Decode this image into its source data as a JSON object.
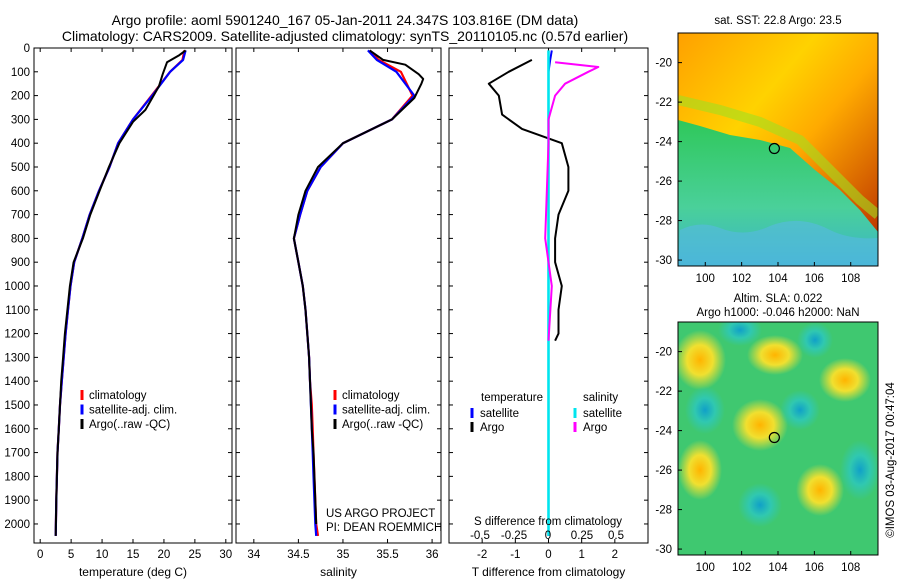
{
  "header": {
    "title_line1": "Argo profile: aoml 5901240_167 05-Jan-2011 24.347S 103.816E (DM data)",
    "title_line2": "Climatology: CARS2009. Satellite-adjusted climatology: synTS_20110105.nc (0.57d earlier)"
  },
  "colors": {
    "climatology": "#ff0000",
    "satellite": "#0000ff",
    "argo": "#000000",
    "sal_sat": "#00e5ee",
    "sal_argo": "#ff00ff"
  },
  "chart_data": [
    {
      "type": "line",
      "xlabel": "temperature (deg C)",
      "ylim": [
        2080,
        0
      ],
      "xlim": [
        -1,
        31
      ],
      "xticks": [
        0,
        5,
        10,
        15,
        20,
        25,
        30
      ],
      "yticks": [
        0,
        100,
        200,
        300,
        400,
        500,
        600,
        700,
        800,
        900,
        1000,
        1100,
        1200,
        1300,
        1400,
        1500,
        1600,
        1700,
        1800,
        1900,
        2000
      ],
      "legend": [
        "climatology",
        "satellite-adj. clim.",
        "Argo(..raw -QC)"
      ],
      "series": [
        {
          "name": "climatology",
          "x": [
            23.3,
            23.0,
            21.0,
            18.0,
            15.0,
            12.6,
            11.2,
            9.5,
            8.0,
            6.8,
            5.5,
            4.9,
            4.5,
            4.1,
            3.8,
            3.5,
            3.2,
            3.0,
            2.8,
            2.7,
            2.6,
            2.5
          ],
          "y": [
            10,
            50,
            100,
            200,
            300,
            400,
            500,
            600,
            700,
            800,
            900,
            1000,
            1100,
            1200,
            1300,
            1400,
            1500,
            1600,
            1700,
            1800,
            1900,
            2050
          ]
        },
        {
          "name": "satellite-adj. clim.",
          "x": [
            23.5,
            23.1,
            21.0,
            18.1,
            15.0,
            12.6,
            11.2,
            9.5,
            8.0,
            6.8,
            5.5,
            4.9,
            4.5,
            4.1,
            3.8,
            3.5,
            3.2,
            3.0,
            2.8,
            2.7,
            2.6,
            2.5
          ],
          "y": [
            10,
            50,
            100,
            200,
            300,
            400,
            500,
            600,
            700,
            800,
            900,
            1000,
            1100,
            1200,
            1300,
            1400,
            1500,
            1600,
            1700,
            1800,
            1900,
            2050
          ]
        },
        {
          "name": "Argo(..raw -QC)",
          "x": [
            23.5,
            22.5,
            20.5,
            19.8,
            19.2,
            17.0,
            15.0,
            12.8,
            11.1,
            9.6,
            8.1,
            6.9,
            5.4,
            4.8,
            4.4,
            4.0,
            3.7,
            3.4,
            3.2,
            3.0,
            2.8,
            2.7,
            2.6,
            2.5
          ],
          "y": [
            10,
            30,
            60,
            110,
            160,
            260,
            310,
            400,
            500,
            600,
            700,
            800,
            900,
            1000,
            1100,
            1200,
            1300,
            1400,
            1500,
            1600,
            1700,
            1800,
            1900,
            2050
          ]
        }
      ]
    },
    {
      "type": "line",
      "xlabel": "salinity",
      "ylim": [
        2080,
        0
      ],
      "xlim": [
        33.8,
        36.1
      ],
      "xticks": [
        34,
        34.5,
        35,
        35.5,
        36
      ],
      "xticklabels": [
        "34",
        "34.5",
        "35",
        "35.5",
        "36"
      ],
      "legend": [
        "climatology",
        "satellite-adj. clim.",
        "Argo(..raw -QC)"
      ],
      "annotation": [
        "US ARGO PROJECT",
        "PI: DEAN ROEMMICH"
      ],
      "series": [
        {
          "name": "climatology",
          "x": [
            35.3,
            35.4,
            35.65,
            35.78,
            35.55,
            35.0,
            34.75,
            34.6,
            34.52,
            34.45,
            34.5,
            34.55,
            34.58,
            34.6,
            34.62,
            34.63,
            34.65,
            34.66,
            34.67,
            34.68,
            34.69,
            34.7,
            34.72
          ],
          "y": [
            10,
            50,
            100,
            200,
            300,
            400,
            500,
            600,
            700,
            800,
            900,
            1000,
            1100,
            1200,
            1300,
            1400,
            1500,
            1600,
            1700,
            1800,
            1900,
            2000,
            2050
          ]
        },
        {
          "name": "satellite-adj. clim.",
          "x": [
            35.28,
            35.38,
            35.6,
            35.8,
            35.55,
            35.0,
            34.75,
            34.6,
            34.52,
            34.45,
            34.5,
            34.55,
            34.58,
            34.6,
            34.62,
            34.63,
            34.64,
            34.65,
            34.66,
            34.67,
            34.68,
            34.69,
            34.7
          ],
          "y": [
            10,
            50,
            100,
            200,
            300,
            400,
            500,
            600,
            700,
            800,
            900,
            1000,
            1100,
            1200,
            1300,
            1400,
            1500,
            1600,
            1700,
            1800,
            1900,
            2000,
            2050
          ]
        },
        {
          "name": "Argo(..raw -QC)",
          "x": [
            35.3,
            35.45,
            35.7,
            35.85,
            35.9,
            35.88,
            35.8,
            35.55,
            35.0,
            34.72,
            34.58,
            34.5,
            34.45,
            34.5,
            34.55,
            34.58,
            34.6,
            34.62,
            34.63,
            34.64,
            34.65,
            34.67,
            34.68,
            34.69,
            34.7
          ],
          "y": [
            10,
            50,
            70,
            110,
            130,
            150,
            210,
            300,
            400,
            500,
            600,
            700,
            800,
            900,
            1000,
            1100,
            1200,
            1300,
            1400,
            1500,
            1600,
            1700,
            1800,
            1900,
            2000
          ]
        }
      ]
    },
    {
      "type": "line",
      "xlabel": "T difference from climatology",
      "xlabel_top": "S difference from climatology",
      "ylim": [
        2080,
        0
      ],
      "xlim": [
        -3,
        3
      ],
      "xticks": [
        -2,
        -1,
        0,
        1,
        2
      ],
      "xticks_top": [
        "-0.5",
        "-0.25",
        "0",
        "0.25",
        "0.5"
      ],
      "legend_headers": [
        "temperature",
        "salinity"
      ],
      "legend": [
        "satellite",
        "Argo",
        "satellite",
        "Argo"
      ],
      "series": [
        {
          "name": "satellite",
          "kind": "temperature",
          "x": [
            0.1,
            0.05,
            0.0,
            0.0,
            0.0,
            0.0,
            0.0,
            0.0,
            0.0,
            0.0,
            0.0
          ],
          "y": [
            10,
            50,
            100,
            200,
            300,
            400,
            600,
            800,
            1000,
            1200,
            2050
          ]
        },
        {
          "name": "Argo",
          "kind": "temperature",
          "x": [
            -0.5,
            -1.2,
            -1.8,
            -1.5,
            -1.4,
            -0.8,
            0.4,
            0.6,
            0.6,
            0.3,
            0.2,
            0.2,
            0.4,
            0.3,
            0.3,
            0.2
          ],
          "y": [
            50,
            100,
            150,
            200,
            280,
            340,
            400,
            500,
            600,
            700,
            800,
            900,
            1000,
            1100,
            1200,
            1230
          ]
        },
        {
          "name": "satellite",
          "kind": "salinity",
          "x": [
            0.0,
            0.0,
            0.0,
            0.0,
            0.0,
            0.0,
            0.0,
            0.0,
            0.0
          ],
          "y": [
            10,
            100,
            200,
            300,
            400,
            600,
            800,
            1200,
            2050
          ]
        },
        {
          "name": "Argo",
          "kind": "salinity",
          "x": [
            0.2,
            1.5,
            1.2,
            0.5,
            0.2,
            0.0,
            0.0,
            -0.1,
            0.1,
            0.0
          ],
          "y": [
            60,
            80,
            100,
            150,
            200,
            300,
            400,
            800,
            1000,
            1230
          ]
        }
      ]
    },
    {
      "type": "heatmap",
      "title": "sat. SST: 22.8  Argo: 23.5",
      "xlim": [
        98.5,
        109.5
      ],
      "ylim": [
        -30.3,
        -18.5
      ],
      "xticks": [
        100,
        102,
        104,
        106,
        108
      ],
      "yticks": [
        -20,
        -22,
        -24,
        -26,
        -28,
        -30
      ],
      "marker": {
        "x": 103.8,
        "y": -24.35
      }
    },
    {
      "type": "heatmap",
      "title_lines": [
        "Altim. SLA: 0.022",
        "Argo h1000: -0.046  h2000: NaN"
      ],
      "xlim": [
        98.5,
        109.5
      ],
      "ylim": [
        -30.3,
        -18.5
      ],
      "xticks": [
        100,
        102,
        104,
        106,
        108
      ],
      "yticks": [
        -20,
        -22,
        -24,
        -26,
        -28,
        -30
      ],
      "marker": {
        "x": 103.8,
        "y": -24.35
      }
    }
  ],
  "footer": {
    "stamp": "©IMOS 03-Aug-2017 00:47:04"
  }
}
